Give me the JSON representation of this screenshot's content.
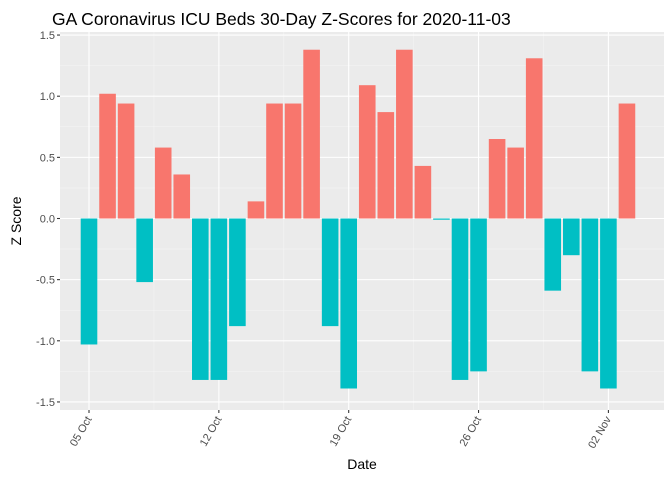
{
  "chart_data": {
    "type": "bar",
    "title": "GA Coronavirus ICU Beds 30-Day Z-Scores for 2020-11-03",
    "xlabel": "Date",
    "ylabel": "Z Score",
    "ylim": [
      -1.5,
      1.5
    ],
    "y_ticks": [
      -1.5,
      -1.0,
      -0.5,
      0.0,
      0.5,
      1.0,
      1.5
    ],
    "y_tick_labels": [
      "-1.5",
      "-1.0",
      "-0.5",
      "0.0",
      "0.5",
      "1.0",
      "1.5"
    ],
    "x_ticks": [
      "2020-10-05",
      "2020-10-12",
      "2020-10-19",
      "2020-10-26",
      "2020-11-02"
    ],
    "x_tick_labels": [
      "05 Oct",
      "12 Oct",
      "19 Oct",
      "26 Oct",
      "02 Nov"
    ],
    "x_tick_rotation": "60 degrees",
    "grid": true,
    "legend": "none",
    "colors": {
      "positive": "#F8766D",
      "negative": "#00BFC4",
      "panel": "#EBEBEB",
      "grid_major": "#FFFFFF",
      "grid_minor": "#F5F5F5"
    },
    "x": [
      "2020-10-05",
      "2020-10-06",
      "2020-10-07",
      "2020-10-08",
      "2020-10-09",
      "2020-10-10",
      "2020-10-11",
      "2020-10-12",
      "2020-10-13",
      "2020-10-14",
      "2020-10-15",
      "2020-10-16",
      "2020-10-17",
      "2020-10-18",
      "2020-10-19",
      "2020-10-20",
      "2020-10-21",
      "2020-10-22",
      "2020-10-23",
      "2020-10-24",
      "2020-10-25",
      "2020-10-26",
      "2020-10-27",
      "2020-10-28",
      "2020-10-29",
      "2020-10-30",
      "2020-10-31",
      "2020-11-01",
      "2020-11-02",
      "2020-11-03"
    ],
    "values": [
      -1.03,
      1.02,
      0.94,
      -0.52,
      0.58,
      0.36,
      -1.32,
      -1.32,
      -0.88,
      0.14,
      0.94,
      0.94,
      1.38,
      -0.88,
      -1.39,
      1.09,
      0.87,
      1.38,
      0.43,
      -0.01,
      -1.32,
      -1.25,
      0.65,
      0.58,
      1.31,
      -0.59,
      -0.3,
      -1.25,
      -1.39,
      0.94
    ]
  }
}
